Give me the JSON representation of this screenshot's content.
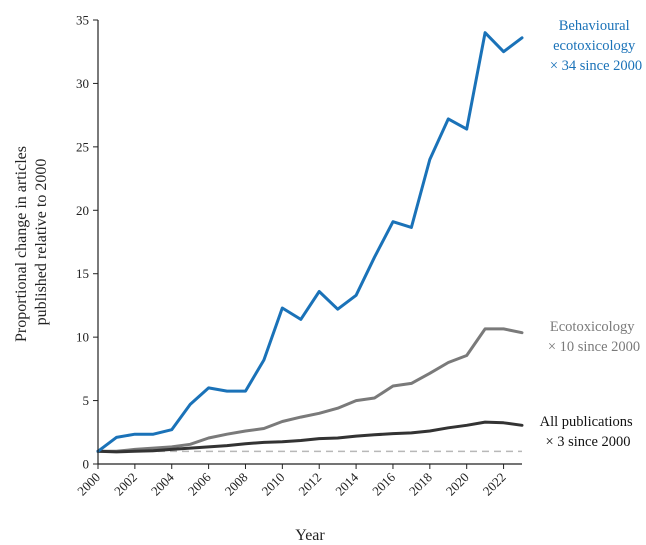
{
  "chart_data": {
    "type": "line",
    "xlabel": "Year",
    "ylabel_lines": [
      "Proportional change in articles",
      "published relative to 2000"
    ],
    "xlim": [
      2000,
      2023
    ],
    "ylim": [
      0,
      35
    ],
    "yticks": [
      0,
      5,
      10,
      15,
      20,
      25,
      30,
      35
    ],
    "xticks": [
      2000,
      2002,
      2004,
      2006,
      2008,
      2010,
      2012,
      2014,
      2016,
      2018,
      2020,
      2022
    ],
    "x": [
      2000,
      2001,
      2002,
      2003,
      2004,
      2005,
      2006,
      2007,
      2008,
      2009,
      2010,
      2011,
      2012,
      2013,
      2014,
      2015,
      2016,
      2017,
      2018,
      2019,
      2020,
      2021,
      2022,
      2023
    ],
    "reference_line": {
      "y": 1,
      "style": "dashed",
      "color": "#b8b8b8"
    },
    "series": [
      {
        "key": "all",
        "color": "#333333",
        "values": [
          1.0,
          0.95,
          1.0,
          1.05,
          1.15,
          1.25,
          1.35,
          1.45,
          1.6,
          1.7,
          1.75,
          1.85,
          2.0,
          2.05,
          2.2,
          2.3,
          2.4,
          2.45,
          2.6,
          2.85,
          3.05,
          3.3,
          3.25,
          3.05
        ],
        "annotation": [
          "All publications",
          "× 3 since 2000"
        ]
      },
      {
        "key": "eco",
        "color": "#7a7a7a",
        "values": [
          1.0,
          1.0,
          1.15,
          1.25,
          1.35,
          1.55,
          2.05,
          2.35,
          2.6,
          2.8,
          3.35,
          3.7,
          4.0,
          4.4,
          5.0,
          5.2,
          6.15,
          6.35,
          7.15,
          8.0,
          8.55,
          10.65,
          10.65,
          10.35
        ],
        "annotation": [
          "Ecotoxicology",
          "× 10 since 2000"
        ]
      },
      {
        "key": "beh",
        "color": "#1a72b8",
        "values": [
          1.0,
          2.1,
          2.35,
          2.35,
          2.7,
          4.7,
          6.0,
          5.75,
          5.75,
          8.2,
          12.3,
          11.4,
          13.6,
          12.2,
          13.3,
          16.3,
          19.1,
          18.65,
          24.0,
          27.2,
          26.4,
          34.0,
          32.5,
          33.6
        ],
        "annotation": [
          "Behavioural",
          "ecotoxicology",
          "× 34 since 2000"
        ]
      }
    ]
  }
}
